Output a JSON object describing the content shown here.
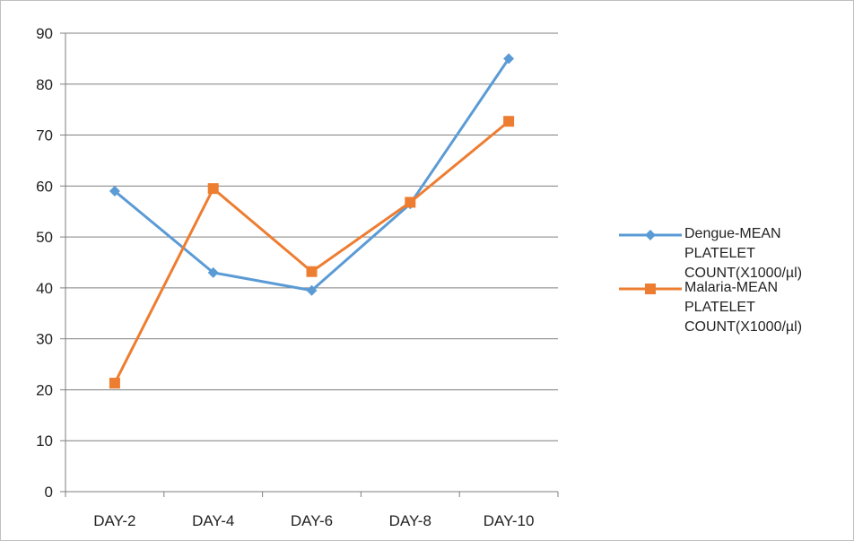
{
  "chart_data": {
    "type": "line",
    "categories": [
      "DAY-2",
      "DAY-4",
      "DAY-6",
      "DAY-8",
      "DAY-10"
    ],
    "series": [
      {
        "name": "Dengue-MEAN PLATELET COUNT(X1000/µl)",
        "values": [
          59,
          43,
          39.5,
          56.5,
          85
        ],
        "color": "#5b9bd5",
        "marker": "diamond"
      },
      {
        "name": "Malaria-MEAN PLATELET COUNT(X1000/µl)",
        "values": [
          21.3,
          59.5,
          43.2,
          56.8,
          72.7
        ],
        "color": "#ed7d31",
        "marker": "square"
      }
    ],
    "ylim": [
      0,
      90
    ],
    "yticks": [
      0,
      10,
      20,
      30,
      40,
      50,
      60,
      70,
      80,
      90
    ],
    "grid": true,
    "legend": "right",
    "title": "",
    "xlabel": "",
    "ylabel": ""
  }
}
